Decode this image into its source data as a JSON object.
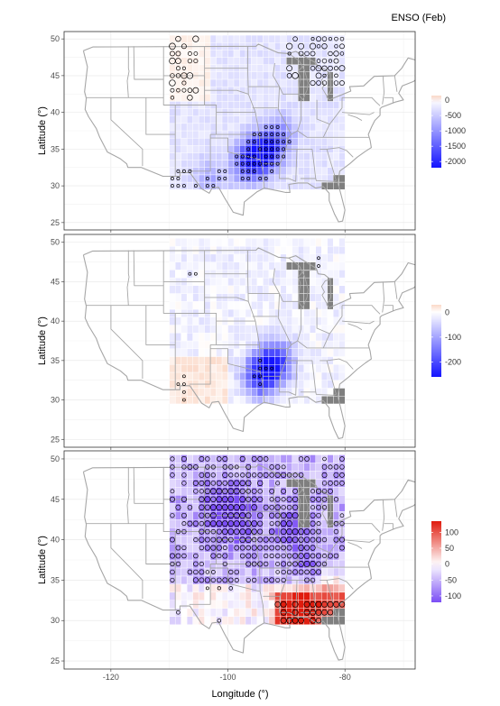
{
  "figure": {
    "title": "ENSO (Feb)",
    "xlabel": "Longitude (°)",
    "ylabel": "Latitude (°)"
  },
  "chart_data": [
    {
      "type": "heatmap",
      "panel": 1,
      "xlim": [
        -128,
        -68
      ],
      "ylim": [
        24,
        51
      ],
      "x_ticks": [
        -120,
        -100,
        -80
      ],
      "y_ticks": [
        25,
        30,
        35,
        40,
        45,
        50
      ],
      "grid": true,
      "grid_extent": {
        "lon": [
          -110,
          -80
        ],
        "lat": [
          29.5,
          50.5
        ],
        "cell_deg": 1
      },
      "colorbar": {
        "ticks": [
          0,
          -500,
          -1000,
          -1500,
          -2000
        ],
        "range": [
          -2200,
          150
        ],
        "low_color": "#1414ff",
        "mid_color": "#ffffff",
        "high_color": "#fbd9c8"
      },
      "cell_fill_hint": "mostly light lavender (-200 to -400); strong negative core near 95W 34N reaching about -2000",
      "hotspots": [
        {
          "lon": -95,
          "lat": 34,
          "value": -2000
        },
        {
          "lon": -93,
          "lat": 35,
          "value": -1600
        },
        {
          "lon": -97,
          "lat": 33,
          "value": -1200
        },
        {
          "lon": -91,
          "lat": 37,
          "value": -900
        },
        {
          "lon": -103,
          "lat": 31,
          "value": -700
        }
      ],
      "missing_cells_hint": "grey cells over the Great Lakes region and the Florida peninsula",
      "significant_points_hint": "open circles over the north-west and north-east sub-regions and dense circles in the negative core"
    },
    {
      "type": "heatmap",
      "panel": 2,
      "xlim": [
        -128,
        -68
      ],
      "ylim": [
        24,
        51
      ],
      "x_ticks": [
        -120,
        -100,
        -80
      ],
      "y_ticks": [
        25,
        30,
        35,
        40,
        45,
        50
      ],
      "grid": true,
      "grid_extent": {
        "lon": [
          -110,
          -80
        ],
        "lat": [
          29.5,
          50.5
        ],
        "cell_deg": 1
      },
      "colorbar": {
        "ticks": [
          0,
          -100,
          -200
        ],
        "range": [
          -260,
          30
        ],
        "low_color": "#1414ff",
        "mid_color": "#ffffff",
        "high_color": "#fbd9c8"
      },
      "cell_fill_hint": "near zero (white / faint tint) over most of the domain; negative core near 93W 34N reaching about -250",
      "hotspots": [
        {
          "lon": -93,
          "lat": 34,
          "value": -250
        },
        {
          "lon": -95,
          "lat": 33,
          "value": -180
        },
        {
          "lon": -91,
          "lat": 35,
          "value": -150
        }
      ],
      "missing_cells_hint": "grey cells over the Great Lakes region and the Florida peninsula",
      "significant_points_hint": "only a few open circles"
    },
    {
      "type": "heatmap",
      "panel": 3,
      "xlim": [
        -128,
        -68
      ],
      "ylim": [
        24,
        51
      ],
      "x_ticks": [
        -120,
        -100,
        -80
      ],
      "y_ticks": [
        25,
        30,
        35,
        40,
        45,
        50
      ],
      "grid": true,
      "grid_extent": {
        "lon": [
          -110,
          -80
        ],
        "lat": [
          29.5,
          50.5
        ],
        "cell_deg": 1
      },
      "colorbar": {
        "ticks": [
          100,
          50,
          0,
          -50,
          -100
        ],
        "range": [
          -120,
          135
        ],
        "low_color": "#7a4df5",
        "mid_color": "#ffffff",
        "high_color": "#e01b0d"
      },
      "cell_fill_hint": "negative (lavender to purple) over most of the northern and central domain; positive (salmon to red) along the Gulf coast reaching about 120 near 89W 31N",
      "hotspots": [
        {
          "lon": -101,
          "lat": 44,
          "value": -100
        },
        {
          "lon": -98,
          "lat": 43,
          "value": -95
        },
        {
          "lon": -89,
          "lat": 41,
          "value": -85
        },
        {
          "lon": -86,
          "lat": 36,
          "value": -80
        },
        {
          "lon": -89,
          "lat": 31,
          "value": 120
        },
        {
          "lon": -86,
          "lat": 32,
          "value": 90
        },
        {
          "lon": -82,
          "lat": 34,
          "value": 70
        }
      ],
      "missing_cells_hint": "grey cells over the Great Lakes region and the Florida peninsula",
      "significant_points_hint": "dense open circles across most of the northern and central domain and along the Gulf coast"
    }
  ]
}
